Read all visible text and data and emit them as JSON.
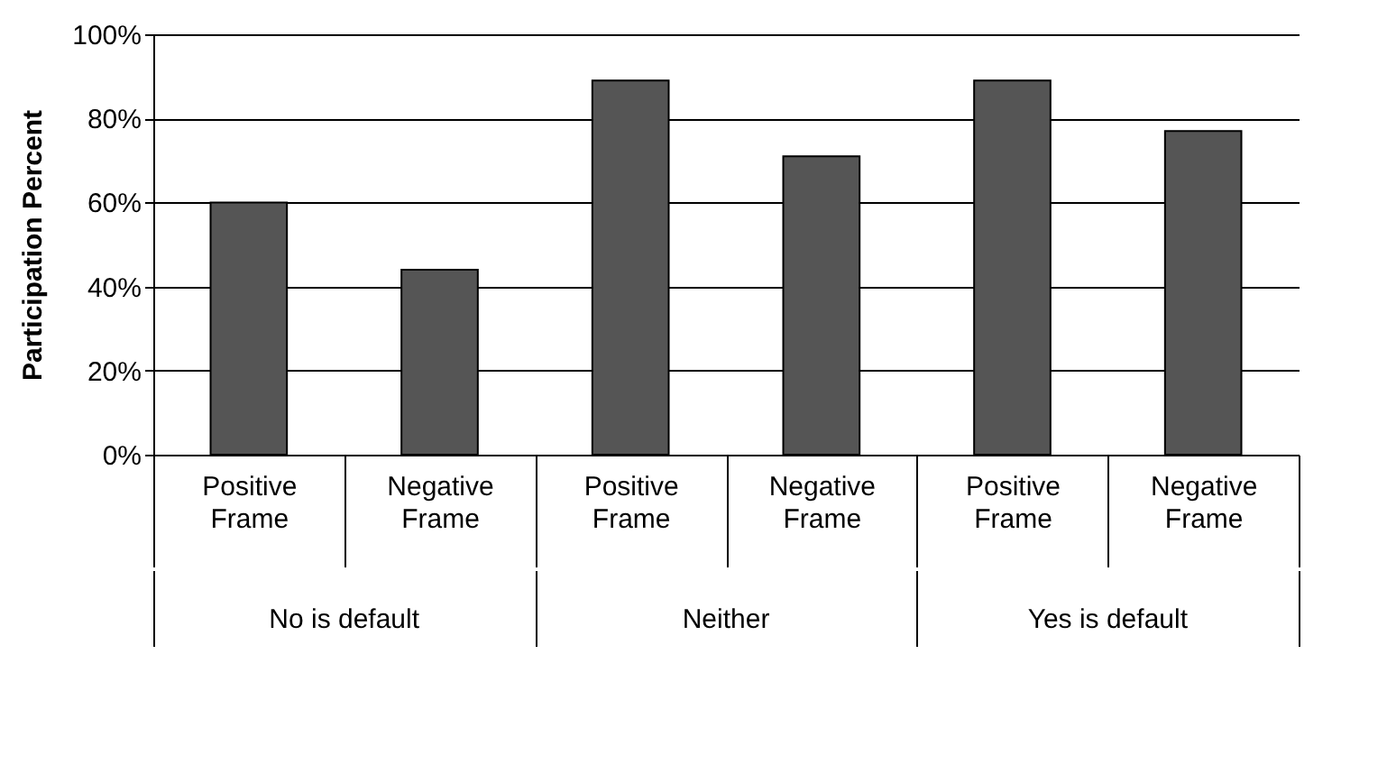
{
  "chart_data": {
    "type": "bar",
    "ylabel": "Participation Percent",
    "categories": [
      "Positive Frame",
      "Negative Frame",
      "Positive Frame",
      "Negative Frame",
      "Positive Frame",
      "Negative Frame"
    ],
    "values": [
      60,
      44,
      89,
      71,
      89,
      77
    ],
    "color": "#555555",
    "ylim": [
      0,
      100
    ],
    "yticks": [
      {
        "value": 0,
        "label": "0%"
      },
      {
        "value": 20,
        "label": "20%"
      },
      {
        "value": 40,
        "label": "40%"
      },
      {
        "value": 60,
        "label": "60%"
      },
      {
        "value": 80,
        "label": "80%"
      },
      {
        "value": 100,
        "label": "100%"
      }
    ],
    "grid": "y",
    "annotations": [
      "No is default",
      "Neither",
      "Yes is default"
    ]
  }
}
